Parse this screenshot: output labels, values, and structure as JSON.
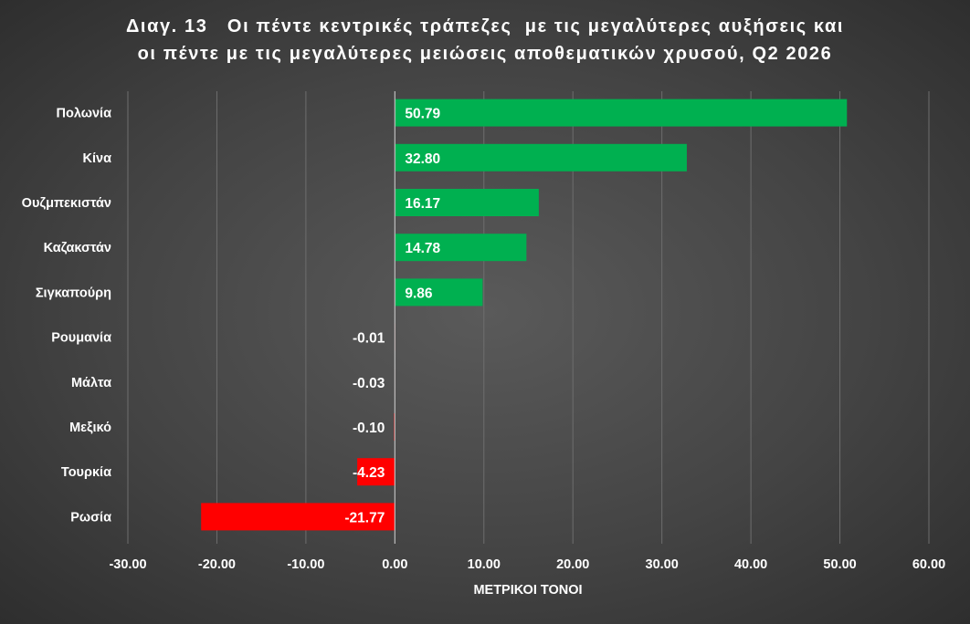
{
  "chart_data": {
    "type": "bar",
    "orientation": "horizontal",
    "title_lines": [
      "Διαγ. 13   Οι πέντε κεντρικές τράπεζες  με τις μεγαλύτερες αυξήσεις και",
      "οι πέντε με τις μεγαλύτερες μειώσεις αποθεματικών χρυσού, Q2 2026"
    ],
    "xlabel": "ΜΕΤΡΙΚΟΙ ΤΟΝΟΙ",
    "xlim": [
      -30,
      60
    ],
    "xticks": [
      -30,
      -20,
      -10,
      0,
      10,
      20,
      30,
      40,
      50,
      60
    ],
    "xtick_labels": [
      "-30.00",
      "-20.00",
      "-10.00",
      "0.00",
      "10.00",
      "20.00",
      "30.00",
      "40.00",
      "50.00",
      "60.00"
    ],
    "grid": "vertical",
    "categories": [
      "Πολωνία",
      "Κίνα",
      "Ουζμπεκιστάν",
      "Καζακστάν ",
      "Σιγκαπούρη",
      "Ρουμανία",
      "Μάλτα",
      "Μεξικό",
      "Τουρκία",
      "Ρωσία"
    ],
    "values": [
      50.79,
      32.8,
      16.17,
      14.78,
      9.86,
      -0.01,
      -0.03,
      -0.1,
      -4.23,
      -21.77
    ],
    "data_labels": [
      "50.79",
      "32.80",
      "16.17",
      "14.78",
      "9.86",
      "-0.01",
      "-0.03",
      "-0.10",
      "-4.23",
      "-21.77"
    ],
    "positive_color": "#00b050",
    "negative_color": "#ff0000",
    "grid_color": "#6e6e6e",
    "axis_color": "#bfbfbf"
  }
}
